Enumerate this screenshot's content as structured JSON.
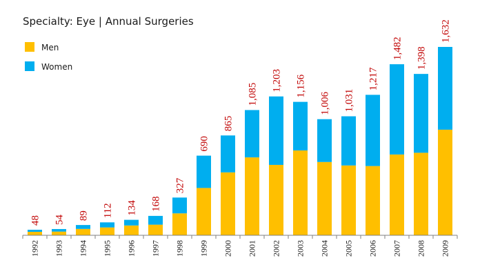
{
  "title": "Specialty: Eye  |  Annual Surgeries",
  "colors": {
    "men": "#ffbf00",
    "women": "#00aeef",
    "total_label": "#c00000",
    "axis": "#808080"
  },
  "chart_data": {
    "type": "bar",
    "stacked": true,
    "title": "Specialty: Eye  |  Annual Surgeries",
    "xlabel": "",
    "ylabel": "",
    "ylim": [
      0,
      1632
    ],
    "legend": "top-left",
    "grid": false,
    "categories": [
      "1992",
      "1993",
      "1994",
      "1995",
      "1996",
      "1997",
      "1998",
      "1999",
      "2000",
      "2001",
      "2002",
      "2003",
      "2004",
      "2005",
      "2006",
      "2007",
      "2008",
      "2009"
    ],
    "series": [
      {
        "name": "Men",
        "color": "#ffbf00",
        "values": [
          30,
          32,
          55,
          68,
          85,
          92,
          190,
          410,
          545,
          675,
          610,
          735,
          635,
          605,
          600,
          700,
          715,
          915
        ]
      },
      {
        "name": "Women",
        "color": "#00aeef",
        "values": [
          18,
          22,
          34,
          44,
          49,
          76,
          137,
          280,
          320,
          410,
          593,
          421,
          371,
          426,
          617,
          782,
          683,
          717
        ]
      }
    ],
    "totals": [
      48,
      54,
      89,
      112,
      134,
      168,
      327,
      690,
      865,
      1085,
      1203,
      1156,
      1006,
      1031,
      1217,
      1482,
      1398,
      1632
    ],
    "total_labels": [
      "48",
      "54",
      "89",
      "112",
      "134",
      "168",
      "327",
      "690",
      "865",
      "1,085",
      "1,203",
      "1,156",
      "1,006",
      "1,031",
      "1,217",
      "1,482",
      "1,398",
      "1,632"
    ]
  }
}
